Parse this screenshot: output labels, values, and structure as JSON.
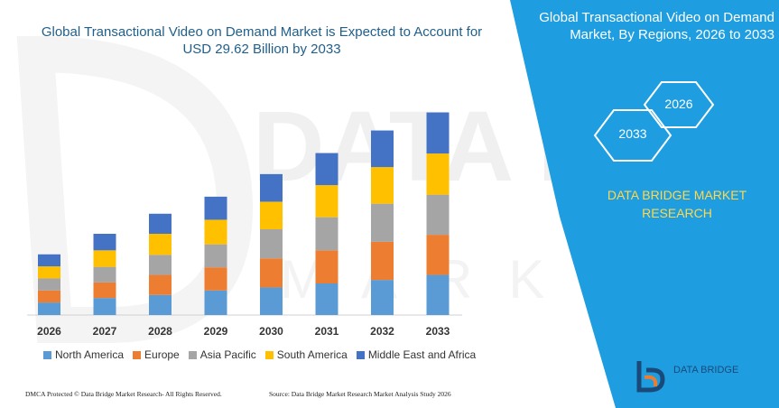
{
  "title": "Global Transactional Video on Demand Market is Expected to Account for USD 29.62 Billion by 2033",
  "panel": {
    "title": "Global Transactional Video on Demand Market, By Regions, 2026 to 2033",
    "hex_a": "2026",
    "hex_b": "2033",
    "brand": "DATA BRIDGE MARKET RESEARCH",
    "logo_text": "DATA BRIDGE",
    "colors": {
      "panel_bg": "#1e9ee0",
      "hex_stroke": "#ffffff",
      "brand_text": "#ffd84d"
    }
  },
  "footer": {
    "left": "DMCA Protected © Data Bridge Market Research- All Rights Reserved.",
    "right": "Source: Data Bridge Market Research Market Analysis Study 2026"
  },
  "chart_data": {
    "type": "bar",
    "stacked": true,
    "categories": [
      "2026",
      "2027",
      "2028",
      "2029",
      "2030",
      "2031",
      "2032",
      "2033"
    ],
    "series": [
      {
        "name": "North America",
        "color": "#5b9bd5",
        "values": [
          2.5,
          3.4,
          4.0,
          4.9,
          5.5,
          6.3,
          7.0,
          8.0
        ]
      },
      {
        "name": "Europe",
        "color": "#ed7d31",
        "values": [
          2.4,
          3.1,
          4.0,
          4.6,
          5.8,
          6.6,
          7.6,
          8.0
        ]
      },
      {
        "name": "Asia Pacific",
        "color": "#a5a5a5",
        "values": [
          2.4,
          3.1,
          4.0,
          4.6,
          5.8,
          6.6,
          7.6,
          8.0
        ]
      },
      {
        "name": "South America",
        "color": "#ffc000",
        "values": [
          2.4,
          3.3,
          4.2,
          4.9,
          5.5,
          6.4,
          7.3,
          8.2
        ]
      },
      {
        "name": "Middle East and Africa",
        "color": "#4472c4",
        "values": [
          2.4,
          3.3,
          4.0,
          4.6,
          5.5,
          6.4,
          7.3,
          8.2
        ]
      }
    ],
    "ylim": [
      0,
      40.5
    ],
    "grid": false,
    "legend": "bottom"
  }
}
